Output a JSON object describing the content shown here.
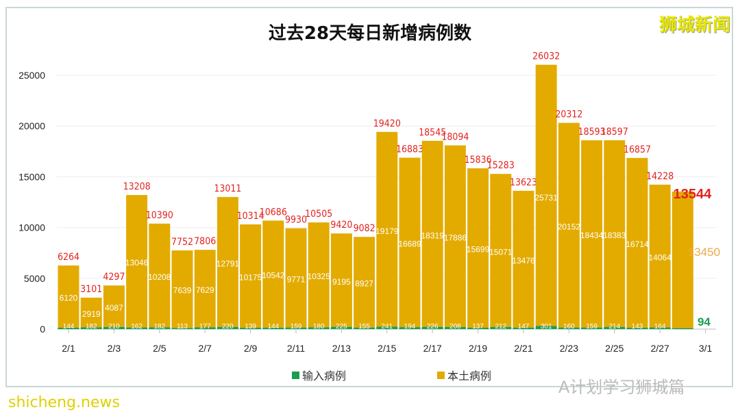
{
  "brand": "狮城新闻",
  "watermark": "A计划学习狮城篇",
  "site_watermark": "shicheng.news",
  "chart_data": {
    "type": "bar",
    "stacked": true,
    "title": "过去28天每日新增病例数",
    "categories": [
      "2/1",
      "2/2",
      "2/3",
      "2/4",
      "2/5",
      "2/6",
      "2/7",
      "2/8",
      "2/9",
      "2/10",
      "2/11",
      "2/12",
      "2/13",
      "2/14",
      "2/15",
      "2/16",
      "2/17",
      "2/18",
      "2/19",
      "2/20",
      "2/21",
      "2/22",
      "2/23",
      "2/24",
      "2/25",
      "2/26",
      "2/27",
      "2/28"
    ],
    "x_tick_labels": [
      "2/1",
      "2/3",
      "2/5",
      "2/7",
      "2/9",
      "2/11",
      "2/13",
      "2/15",
      "2/17",
      "2/19",
      "2/21",
      "2/23",
      "2/25",
      "2/27",
      "3/1"
    ],
    "series": [
      {
        "name": "输入病例",
        "color": "#1a9e50",
        "values": [
          144,
          182,
          210,
          162,
          182,
          113,
          177,
          220,
          139,
          144,
          159,
          180,
          225,
          155,
          241,
          194,
          226,
          208,
          137,
          212,
          147,
          301,
          160,
          159,
          214,
          143,
          164,
          94
        ]
      },
      {
        "name": "本土病例",
        "color": "#e3ab00",
        "values": [
          6120,
          2919,
          4087,
          13046,
          10208,
          7639,
          7629,
          12791,
          10175,
          10542,
          9771,
          10325,
          9195,
          8927,
          19179,
          16689,
          18319,
          17886,
          15699,
          15071,
          13476,
          25731,
          20152,
          18434,
          18383,
          16714,
          14064,
          13450
        ]
      }
    ],
    "totals": [
      6264,
      3101,
      4297,
      13208,
      10390,
      7752,
      7806,
      13011,
      10314,
      10686,
      9930,
      10505,
      9420,
      9082,
      19420,
      16883,
      18545,
      18094,
      15836,
      15283,
      13623,
      26032,
      20312,
      18593,
      18597,
      16857,
      14228,
      13544
    ],
    "y_ticks": [
      0,
      5000,
      10000,
      15000,
      20000,
      25000
    ],
    "ylim": [
      0,
      27000
    ],
    "grid": true,
    "legend": "bottom",
    "total_label_color": "#e3211c"
  }
}
